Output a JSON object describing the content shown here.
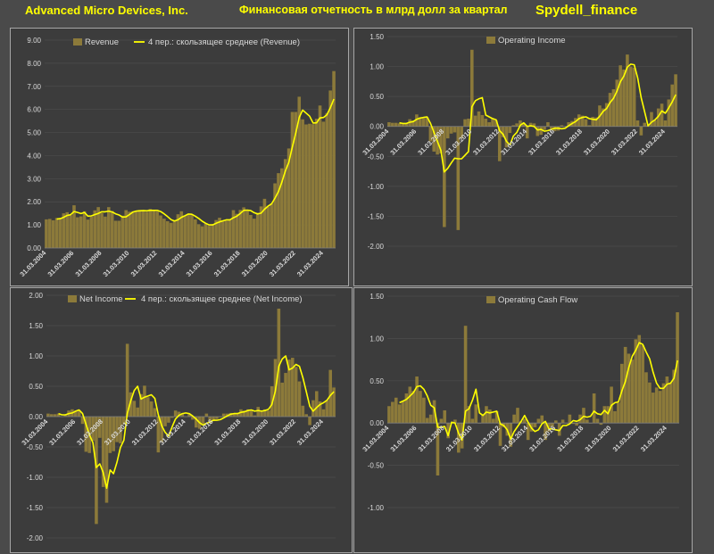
{
  "header": {
    "company": "Advanced Micro Devices, Inc.",
    "subtitle": "Финансовая отчетность в млрд долл за квартал",
    "brand": "Spydell_finance"
  },
  "colors": {
    "bar": "#8c7a3a",
    "line": "#ffff00",
    "text": "#d9d9d9",
    "background": "#3c3c3c",
    "grid": "#4d4d4d"
  },
  "chart_data": [
    {
      "type": "bar",
      "id": "revenue",
      "ylim": [
        0,
        9
      ],
      "yticks": [
        "0.00",
        "1.00",
        "2.00",
        "3.00",
        "4.00",
        "5.00",
        "6.00",
        "7.00",
        "8.00",
        "9.00"
      ],
      "xticks": [
        "31.03.2004",
        "31.03.2006",
        "31.03.2008",
        "31.03.2010",
        "31.03.2012",
        "31.03.2014",
        "31.03.2016",
        "31.03.2018",
        "31.03.2020",
        "31.03.2022",
        "31.03.2024"
      ],
      "legend": {
        "bar": "Revenue",
        "line": "4 пер.: скользящее среднее (Revenue)"
      },
      "series": [
        {
          "name": "Revenue",
          "values": [
            1.24,
            1.26,
            1.2,
            1.3,
            1.3,
            1.5,
            1.55,
            1.42,
            1.85,
            1.33,
            1.37,
            1.59,
            1.23,
            1.36,
            1.63,
            1.77,
            1.51,
            1.36,
            1.77,
            1.6,
            1.18,
            1.18,
            1.4,
            1.64,
            1.57,
            1.59,
            1.62,
            1.65,
            1.61,
            1.57,
            1.69,
            1.65,
            1.59,
            1.41,
            1.27,
            1.16,
            1.09,
            1.16,
            1.46,
            1.59,
            1.4,
            1.44,
            1.43,
            1.24,
            1.03,
            0.94,
            1.06,
            0.96,
            1.03,
            1.21,
            1.31,
            1.18,
            1.18,
            1.22,
            1.64,
            1.48,
            1.65,
            1.76,
            1.65,
            1.43,
            1.27,
            1.53,
            1.8,
            2.13,
            1.79,
            1.93,
            2.8,
            3.24,
            3.45,
            3.85,
            4.31,
            5.89,
            5.89,
            6.55,
            5.57,
            5.35,
            5.38,
            5.36,
            5.6,
            6.17,
            5.47,
            5.84,
            6.82,
            7.66
          ]
        },
        {
          "name": "4 пер.: скользящее среднее (Revenue)",
          "values": [
            null,
            null,
            null,
            1.25,
            1.27,
            1.33,
            1.41,
            1.44,
            1.58,
            1.54,
            1.49,
            1.54,
            1.38,
            1.39,
            1.45,
            1.5,
            1.57,
            1.57,
            1.6,
            1.56,
            1.48,
            1.43,
            1.34,
            1.35,
            1.45,
            1.56,
            1.6,
            1.61,
            1.62,
            1.61,
            1.63,
            1.63,
            1.63,
            1.58,
            1.48,
            1.36,
            1.23,
            1.17,
            1.22,
            1.33,
            1.4,
            1.47,
            1.46,
            1.38,
            1.28,
            1.16,
            1.07,
            1.0,
            1.0,
            1.07,
            1.13,
            1.18,
            1.22,
            1.22,
            1.31,
            1.38,
            1.5,
            1.63,
            1.64,
            1.62,
            1.53,
            1.47,
            1.51,
            1.68,
            1.81,
            1.91,
            2.16,
            2.44,
            2.85,
            3.33,
            3.71,
            4.37,
            4.98,
            5.66,
            5.97,
            5.84,
            5.71,
            5.41,
            5.42,
            5.63,
            5.65,
            5.77,
            6.08,
            6.45
          ]
        }
      ]
    },
    {
      "type": "bar",
      "id": "operating_income",
      "ylim": [
        -2,
        1.5
      ],
      "yticks": [
        "-2.00",
        "-1.50",
        "-1.00",
        "-0.50",
        "0.00",
        "0.50",
        "1.00",
        "1.50"
      ],
      "xticks": [
        "31.03.2004",
        "31.03.2006",
        "31.03.2008",
        "31.03.2010",
        "31.03.2012",
        "31.03.2014",
        "31.03.2016",
        "31.03.2018",
        "31.03.2020",
        "31.03.2022",
        "31.03.2024"
      ],
      "legend": {
        "bar": "Operating Income",
        "line": ""
      },
      "series": [
        {
          "name": "Operating Income",
          "values": [
            0.07,
            0.06,
            0.06,
            0.05,
            0.04,
            0.05,
            0.12,
            0.1,
            0.2,
            0.15,
            0.14,
            0.15,
            -0.25,
            -0.42,
            -0.47,
            -0.45,
            -1.68,
            -0.2,
            -0.12,
            -0.1,
            -1.73,
            -0.2,
            0.12,
            0.13,
            1.28,
            0.18,
            0.25,
            0.19,
            0.13,
            0.07,
            0.14,
            0.1,
            -0.58,
            -0.18,
            -0.35,
            -0.11,
            0.02,
            0.05,
            0.1,
            0.06,
            -0.2,
            0.06,
            0.05,
            -0.16,
            -0.14,
            -0.06,
            0.07,
            -0.04,
            -0.08,
            -0.07,
            0.02,
            0.0,
            0.07,
            0.09,
            0.14,
            0.2,
            0.18,
            0.12,
            0.02,
            0.16,
            0.15,
            0.35,
            0.3,
            0.39,
            0.56,
            0.62,
            0.78,
            1.02,
            0.95,
            1.2,
            1.0,
            0.98,
            0.1,
            -0.15,
            0.06,
            0.02,
            0.24,
            0.1,
            0.3,
            0.38,
            0.1,
            0.45,
            0.7,
            0.87
          ]
        },
        {
          "name": "4 пер.: скользящее среднее (Operating Income)",
          "values": [
            null,
            null,
            null,
            0.06,
            0.05,
            0.05,
            0.07,
            0.08,
            0.12,
            0.14,
            0.15,
            0.16,
            0.05,
            -0.1,
            -0.25,
            -0.4,
            -0.76,
            -0.7,
            -0.61,
            -0.53,
            -0.54,
            -0.54,
            -0.48,
            -0.42,
            0.33,
            0.43,
            0.46,
            0.48,
            0.19,
            0.16,
            0.13,
            0.11,
            -0.07,
            -0.13,
            -0.25,
            -0.31,
            -0.16,
            -0.1,
            0.02,
            0.06,
            0.0,
            0.01,
            0.0,
            -0.06,
            -0.05,
            -0.08,
            -0.07,
            -0.05,
            -0.03,
            -0.03,
            -0.04,
            -0.03,
            0.01,
            0.05,
            0.08,
            0.13,
            0.15,
            0.16,
            0.13,
            0.12,
            0.11,
            0.17,
            0.25,
            0.3,
            0.4,
            0.47,
            0.59,
            0.75,
            0.84,
            0.99,
            1.04,
            1.03,
            0.81,
            0.48,
            0.25,
            0.01,
            0.07,
            0.11,
            0.17,
            0.26,
            0.22,
            0.31,
            0.41,
            0.53
          ]
        }
      ]
    },
    {
      "type": "bar",
      "id": "net_income",
      "ylim": [
        -2,
        2
      ],
      "yticks": [
        "-2.00",
        "-1.50",
        "-1.00",
        "-0.50",
        "0.00",
        "0.50",
        "1.00",
        "1.50",
        "2.00"
      ],
      "xticks": [
        "31.03.2004",
        "31.03.2006",
        "31.03.2008",
        "31.03.2010",
        "31.03.2012",
        "31.03.2014",
        "31.03.2016",
        "31.03.2018",
        "31.03.2020",
        "31.03.2022",
        "31.03.2024"
      ],
      "legend": {
        "bar": "Net Income",
        "line": "4 пер.: скользящее среднее (Net Income)"
      },
      "series": [
        {
          "name": "Net Income",
          "values": [
            0.05,
            0.04,
            0.04,
            0.05,
            0.0,
            0.03,
            0.1,
            0.12,
            0.1,
            0.1,
            -0.12,
            -0.58,
            -0.6,
            -0.4,
            -1.77,
            -0.35,
            -1.16,
            -1.42,
            -0.6,
            -0.57,
            -0.42,
            -0.44,
            -0.13,
            1.2,
            0.4,
            0.26,
            0.15,
            0.37,
            0.51,
            0.32,
            0.25,
            0.14,
            -0.59,
            -0.42,
            -0.16,
            -0.1,
            -0.02,
            0.1,
            0.08,
            0.05,
            0.0,
            0.05,
            -0.05,
            -0.18,
            -0.2,
            -0.12,
            0.05,
            -0.1,
            -0.07,
            -0.04,
            -0.01,
            0.05,
            0.05,
            0.06,
            0.06,
            0.05,
            0.12,
            0.1,
            0.12,
            0.1,
            0.02,
            0.16,
            0.08,
            0.12,
            0.1,
            0.5,
            0.95,
            1.78,
            0.56,
            0.72,
            0.94,
            0.97,
            0.82,
            0.58,
            0.18,
            0.04,
            -0.14,
            0.27,
            0.42,
            0.25,
            0.12,
            0.27,
            0.77,
            0.48
          ]
        },
        {
          "name": "4 пер.: скользящее среднее (Net Income)",
          "values": [
            null,
            null,
            null,
            0.05,
            0.03,
            0.03,
            0.05,
            0.06,
            0.09,
            0.11,
            0.05,
            -0.13,
            -0.3,
            -0.43,
            -0.84,
            -0.78,
            -0.92,
            -1.18,
            -0.88,
            -0.94,
            -0.75,
            -0.51,
            -0.39,
            0.05,
            0.26,
            0.43,
            0.5,
            0.29,
            0.32,
            0.34,
            0.36,
            0.3,
            0.03,
            -0.15,
            -0.26,
            -0.32,
            -0.17,
            -0.04,
            0.02,
            0.05,
            0.06,
            0.05,
            0.01,
            -0.04,
            -0.1,
            -0.14,
            -0.11,
            -0.09,
            -0.06,
            -0.06,
            -0.05,
            -0.02,
            0.01,
            0.04,
            0.05,
            0.05,
            0.07,
            0.08,
            0.1,
            0.11,
            0.09,
            0.1,
            0.09,
            0.1,
            0.12,
            0.2,
            0.42,
            0.83,
            0.95,
            1.0,
            0.77,
            0.8,
            0.86,
            0.83,
            0.64,
            0.41,
            0.17,
            0.09,
            0.15,
            0.2,
            0.23,
            0.27,
            0.35,
            0.41
          ]
        }
      ]
    },
    {
      "type": "bar",
      "id": "operating_cash_flow",
      "ylim": [
        -1,
        1.5
      ],
      "yticks": [
        "-1.00",
        "-0.50",
        "0.00",
        "0.50",
        "1.00",
        "1.50"
      ],
      "xticks": [
        "31.03.2004",
        "31.03.2006",
        "31.03.2008",
        "31.03.2010",
        "31.03.2012",
        "31.03.2014",
        "31.03.2016",
        "31.03.2018",
        "31.03.2020",
        "31.03.2022",
        "31.03.2024"
      ],
      "legend": {
        "bar": "Operating Cash Flow",
        "line": ""
      },
      "series": [
        {
          "name": "Operating Cash Flow",
          "values": [
            0.2,
            0.25,
            0.3,
            0.22,
            0.26,
            0.35,
            0.43,
            0.38,
            0.55,
            0.38,
            0.3,
            0.06,
            0.1,
            0.27,
            -0.62,
            0.05,
            0.15,
            -0.18,
            0.0,
            0.04,
            -0.35,
            -0.3,
            1.15,
            0.2,
            0.05,
            0.22,
            0.0,
            0.1,
            0.2,
            0.16,
            0.05,
            0.14,
            -0.27,
            -0.05,
            -0.15,
            -0.28,
            0.1,
            0.18,
            0.02,
            0.05,
            -0.2,
            -0.1,
            -0.05,
            0.05,
            0.09,
            -0.2,
            -0.1,
            -0.05,
            0.03,
            -0.15,
            0.04,
            0.0,
            0.1,
            -0.01,
            -0.03,
            0.1,
            0.18,
            0.04,
            0.0,
            0.35,
            0.05,
            -0.02,
            0.2,
            0.2,
            0.43,
            0.14,
            0.24,
            0.7,
            0.9,
            0.82,
            0.75,
            0.99,
            1.04,
            0.92,
            0.6,
            0.48,
            0.36,
            0.42,
            0.38,
            0.47,
            0.55,
            0.48,
            0.63,
            1.31
          ]
        },
        {
          "name": "4 пер.: скользящее среднее (Operating Cash Flow)",
          "values": [
            null,
            null,
            null,
            0.24,
            0.26,
            0.28,
            0.32,
            0.36,
            0.43,
            0.44,
            0.4,
            0.32,
            0.21,
            0.18,
            -0.05,
            -0.05,
            -0.04,
            -0.15,
            0.01,
            0.0,
            -0.12,
            -0.2,
            0.14,
            0.17,
            0.27,
            0.4,
            0.12,
            0.09,
            0.13,
            0.12,
            0.13,
            0.14,
            -0.01,
            -0.03,
            -0.08,
            -0.19,
            -0.1,
            -0.04,
            0.02,
            0.09,
            0.01,
            -0.06,
            -0.1,
            -0.08,
            -0.01,
            0.02,
            -0.07,
            -0.07,
            -0.08,
            -0.09,
            -0.03,
            -0.03,
            -0.01,
            0.03,
            0.02,
            0.04,
            0.08,
            0.07,
            0.08,
            0.14,
            0.11,
            0.1,
            0.15,
            0.11,
            0.21,
            0.24,
            0.25,
            0.38,
            0.49,
            0.66,
            0.79,
            0.86,
            0.95,
            0.93,
            0.84,
            0.76,
            0.6,
            0.47,
            0.41,
            0.41,
            0.46,
            0.47,
            0.53,
            0.74
          ]
        }
      ]
    }
  ]
}
